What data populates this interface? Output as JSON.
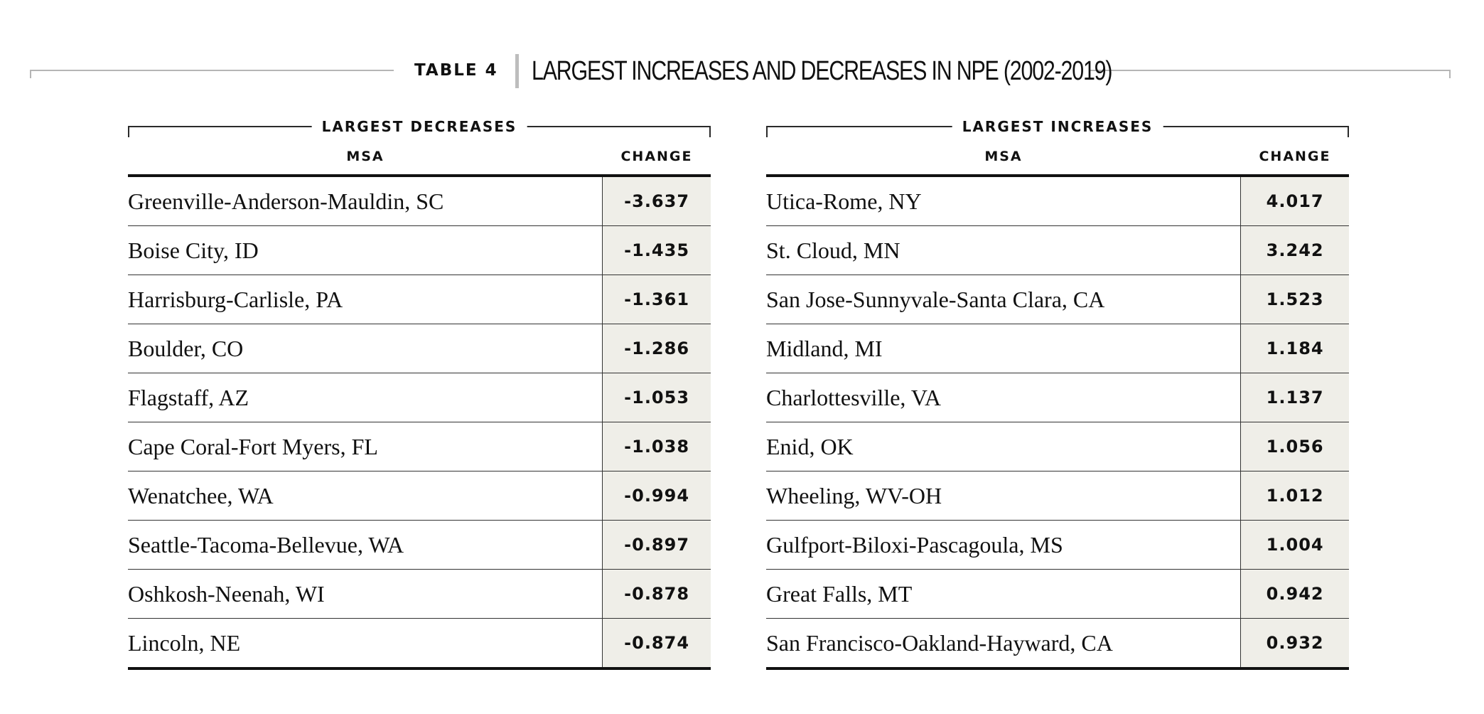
{
  "header": {
    "table_label": "TABLE 4",
    "title": "LARGEST INCREASES AND DECREASES IN NPE (2002-2019)"
  },
  "decreases": {
    "group_label": "LARGEST DECREASES",
    "col_msa": "MSA",
    "col_change": "CHANGE",
    "rows": [
      {
        "msa": "Greenville-Anderson-Mauldin, SC",
        "change": "-3.637"
      },
      {
        "msa": "Boise City, ID",
        "change": "-1.435"
      },
      {
        "msa": "Harrisburg-Carlisle, PA",
        "change": "-1.361"
      },
      {
        "msa": "Boulder, CO",
        "change": "-1.286"
      },
      {
        "msa": "Flagstaff, AZ",
        "change": "-1.053"
      },
      {
        "msa": "Cape Coral-Fort Myers, FL",
        "change": "-1.038"
      },
      {
        "msa": "Wenatchee, WA",
        "change": "-0.994"
      },
      {
        "msa": "Seattle-Tacoma-Bellevue, WA",
        "change": "-0.897"
      },
      {
        "msa": "Oshkosh-Neenah, WI",
        "change": "-0.878"
      },
      {
        "msa": "Lincoln, NE",
        "change": "-0.874"
      }
    ]
  },
  "increases": {
    "group_label": "LARGEST INCREASES",
    "col_msa": "MSA",
    "col_change": "CHANGE",
    "rows": [
      {
        "msa": "Utica-Rome, NY",
        "change": "4.017"
      },
      {
        "msa": "St. Cloud, MN",
        "change": "3.242"
      },
      {
        "msa": "San Jose-Sunnyvale-Santa Clara, CA",
        "change": "1.523"
      },
      {
        "msa": "Midland, MI",
        "change": "1.184"
      },
      {
        "msa": "Charlottesville, VA",
        "change": "1.137"
      },
      {
        "msa": "Enid, OK",
        "change": "1.056"
      },
      {
        "msa": "Wheeling, WV-OH",
        "change": "1.012"
      },
      {
        "msa": "Gulfport-Biloxi-Pascagoula, MS",
        "change": "1.004"
      },
      {
        "msa": "Great Falls, MT",
        "change": "0.942"
      },
      {
        "msa": "San Francisco-Oakland-Hayward, CA",
        "change": "0.932"
      }
    ]
  }
}
